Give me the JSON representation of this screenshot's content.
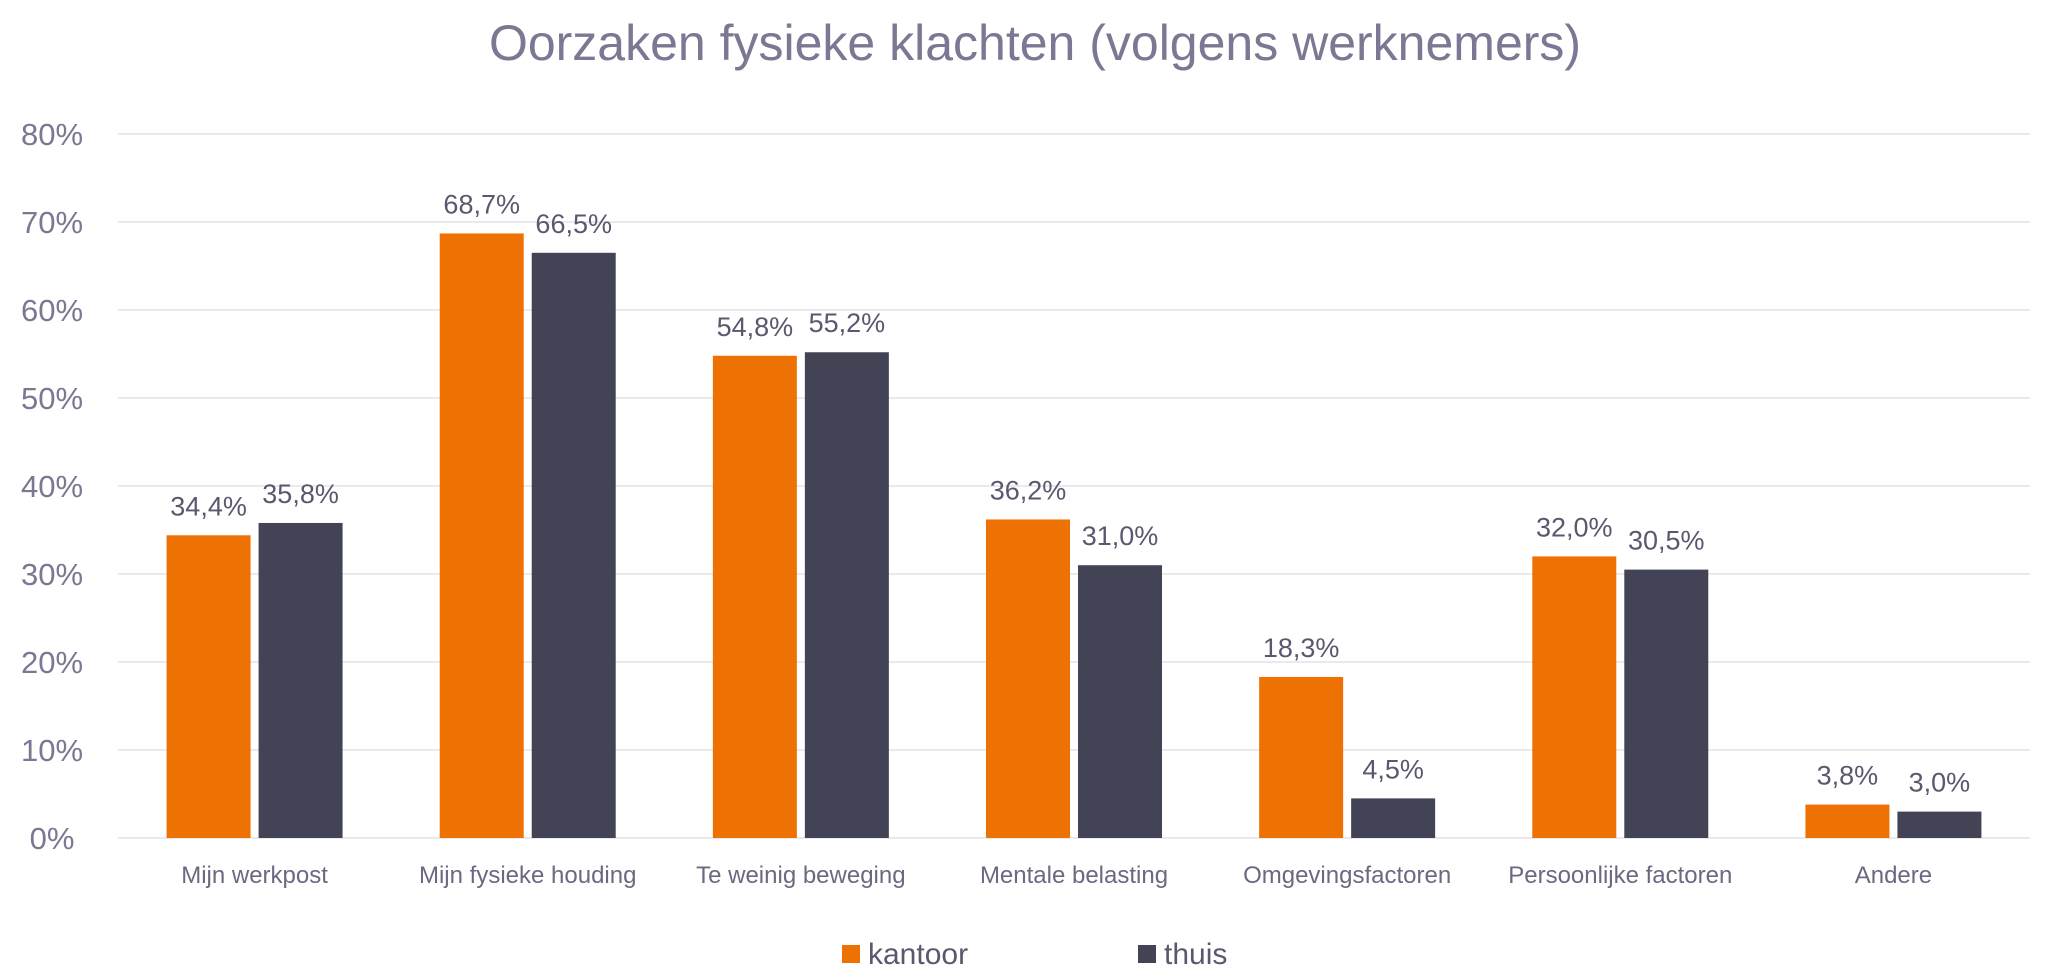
{
  "chart_data": {
    "type": "bar",
    "title": "Oorzaken fysieke klachten (volgens werknemers)",
    "xlabel": "",
    "ylabel": "",
    "categories": [
      "Mijn werkpost",
      "Mijn fysieke houding",
      "Te weinig beweging",
      "Mentale belasting",
      "Omgevingsfactoren",
      "Persoonlijke factoren",
      "Andere"
    ],
    "series": [
      {
        "name": "kantoor",
        "color": "#ee7203",
        "values": [
          34.4,
          68.7,
          54.8,
          36.2,
          18.3,
          32.0,
          3.8
        ],
        "labels": [
          "34,4%",
          "68,7%",
          "54,8%",
          "36,2%",
          "18,3%",
          "32,0%",
          "3,8%"
        ]
      },
      {
        "name": "thuis",
        "color": "#434356",
        "values": [
          35.8,
          66.5,
          55.2,
          31.0,
          4.5,
          30.5,
          3.0
        ],
        "labels": [
          "35,8%",
          "66,5%",
          "55,2%",
          "31,0%",
          "4,5%",
          "30,5%",
          "3,0%"
        ]
      }
    ],
    "ylim": [
      0,
      80
    ],
    "yticks": [
      0,
      10,
      20,
      30,
      40,
      50,
      60,
      70,
      80
    ],
    "ytick_labels": [
      "0%",
      "10%",
      "20%",
      "30%",
      "40%",
      "50%",
      "60%",
      "70%",
      "80%"
    ],
    "grid": true,
    "legend_position": "bottom"
  }
}
